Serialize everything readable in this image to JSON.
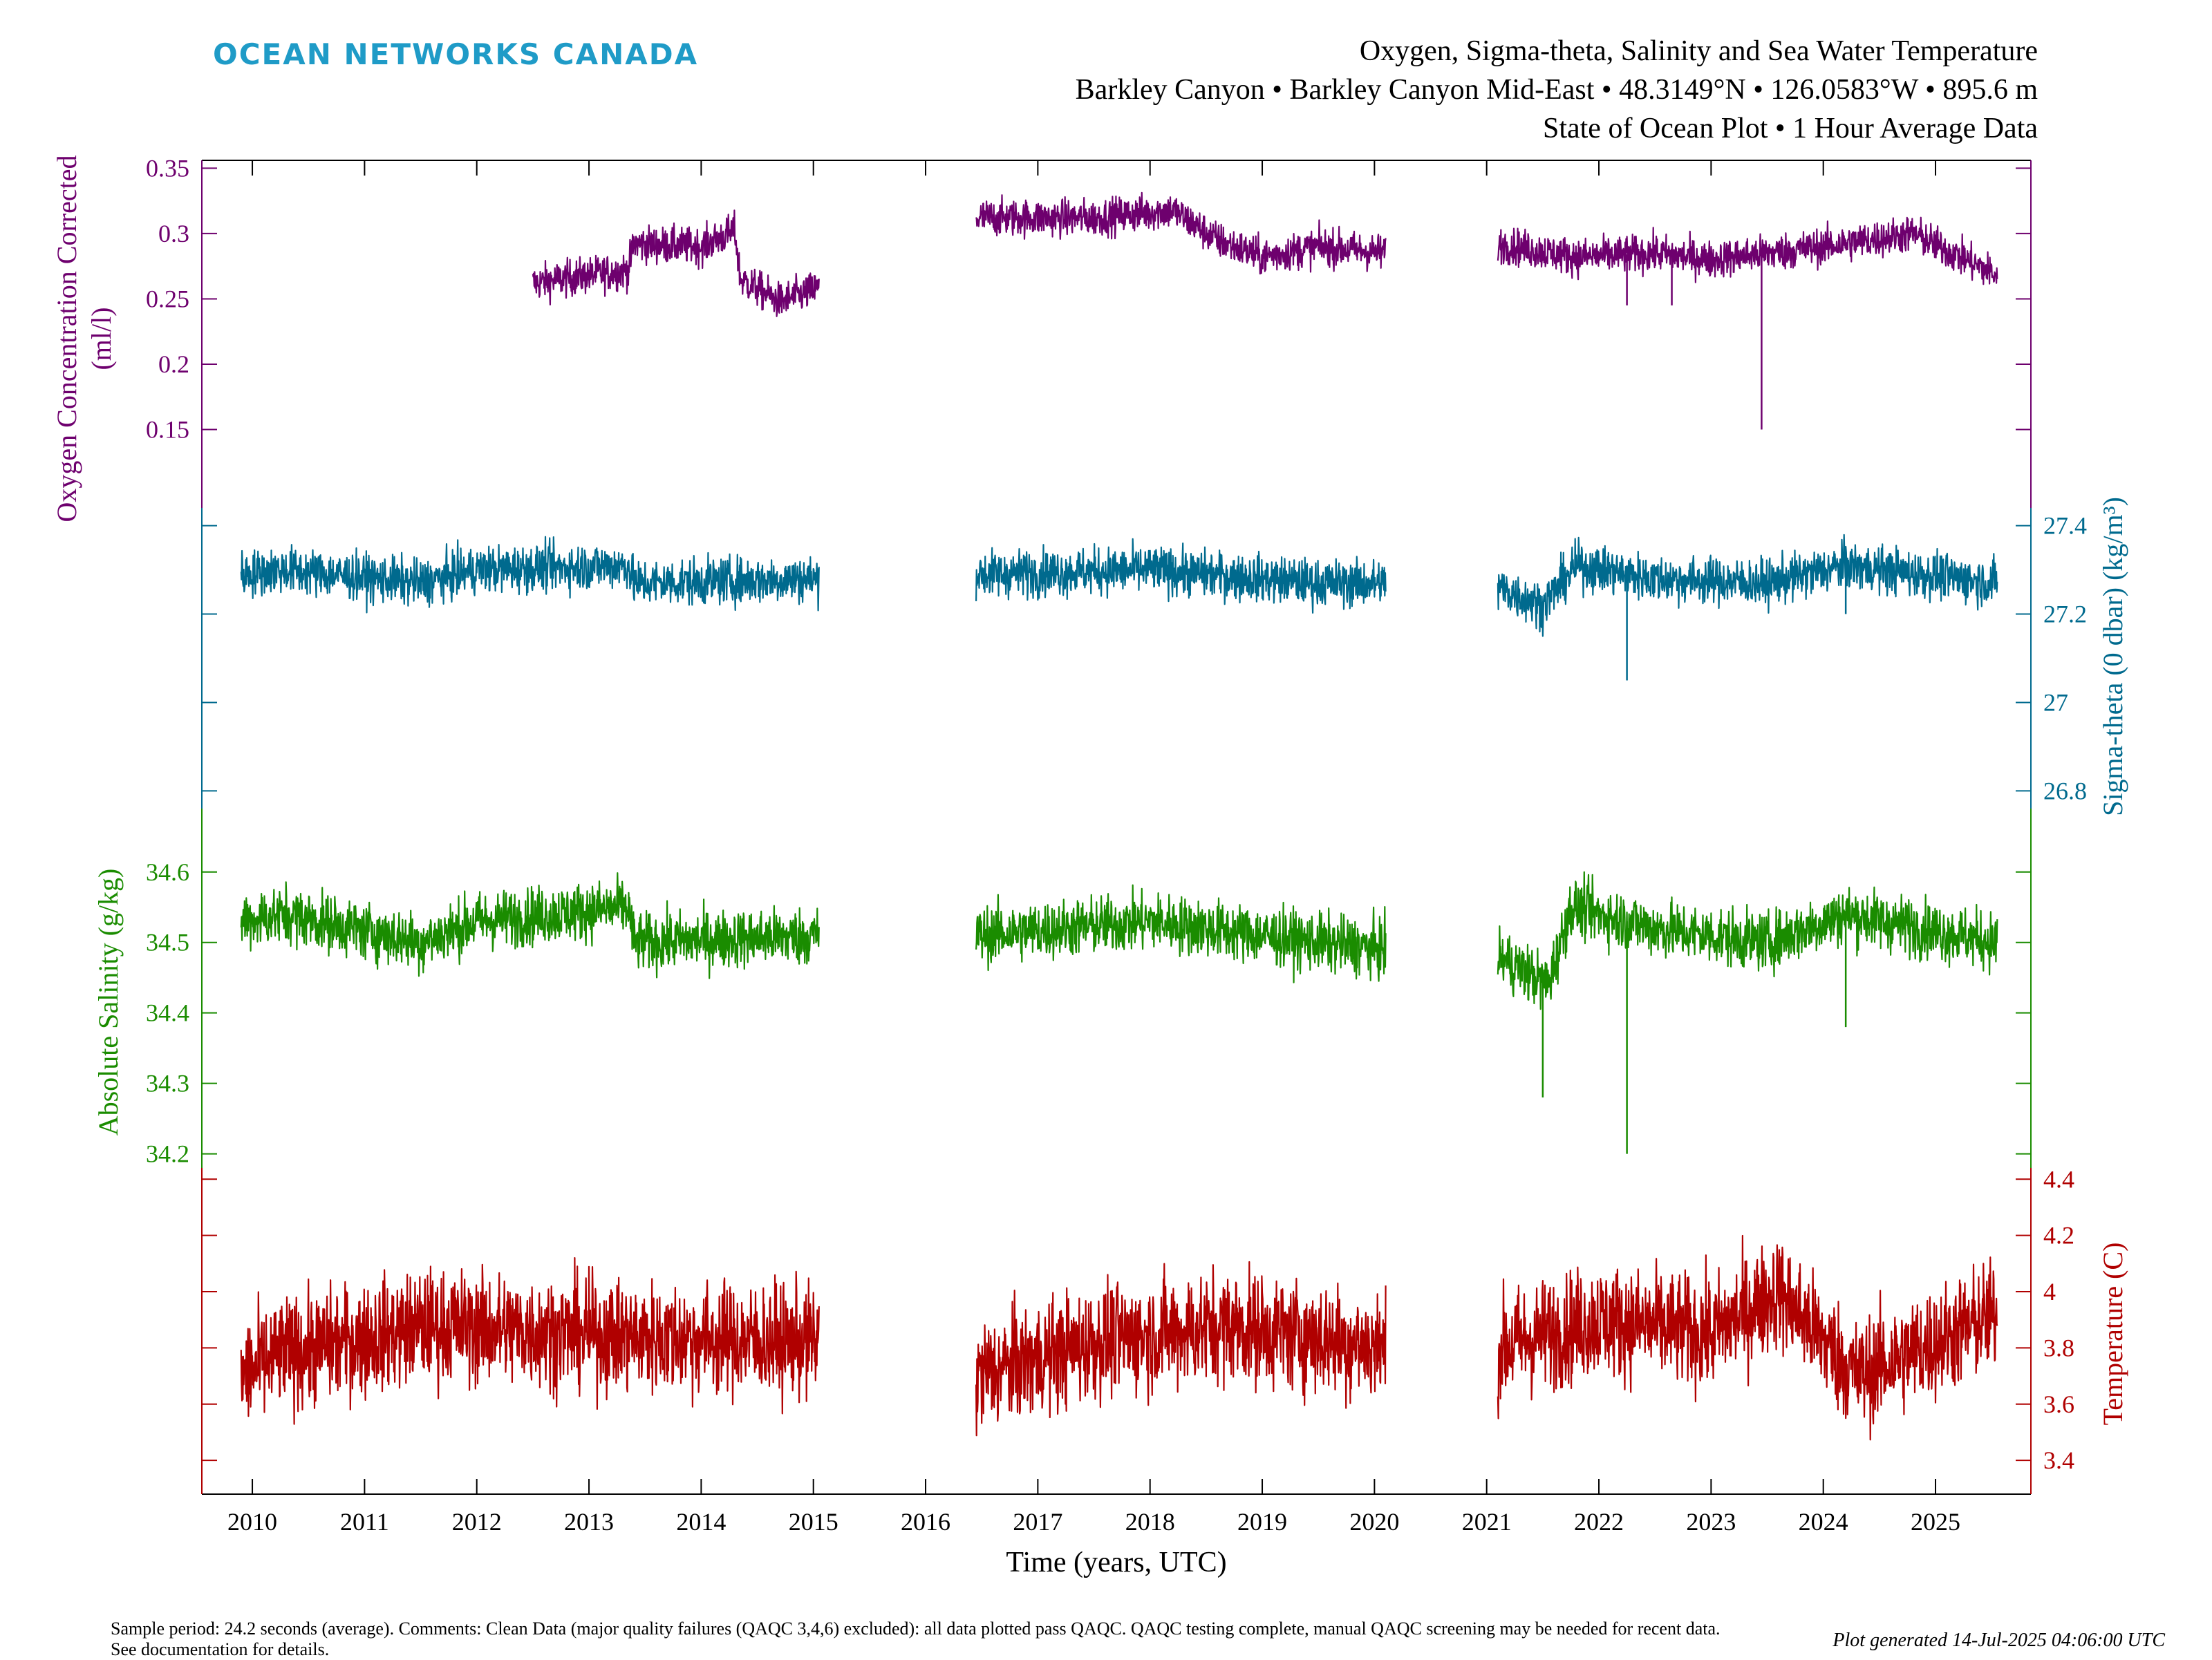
{
  "header": {
    "brand": "OCEAN NETWORKS CANADA",
    "title_line1": "Oxygen, Sigma-theta, Salinity and Sea Water Temperature",
    "title_line2": "Barkley Canyon • Barkley Canyon Mid-East • 48.3149°N • 126.0583°W • 895.6 m",
    "title_line3": "State of Ocean Plot • 1 Hour Average Data"
  },
  "footer": {
    "note": "Sample period: 24.2 seconds (average). Comments: Clean Data (major quality failures (QAQC 3,4,6) excluded): all data plotted pass QAQC. QAQC testing complete, manual QAQC screening may be needed for recent data. See documentation for details.",
    "generated": "Plot generated 14-Jul-2025 04:06:00 UTC"
  },
  "colors": {
    "oxygen": "#6e006e",
    "sigma": "#006a8e",
    "salinity": "#1a8c00",
    "temperature": "#b00000"
  },
  "chart_data": {
    "type": "line",
    "x_axis": {
      "label": "Time (years, UTC)",
      "range": [
        2009.55,
        2025.85
      ],
      "ticks": [
        2010,
        2011,
        2012,
        2013,
        2014,
        2015,
        2016,
        2017,
        2018,
        2019,
        2020,
        2021,
        2022,
        2023,
        2024,
        2025
      ]
    },
    "series": [
      {
        "name": "Oxygen",
        "axis_label": "Oxygen Concentration Corrected (ml/l)",
        "axis_side": "left",
        "ticks": [
          0.15,
          0.2,
          0.25,
          0.3,
          0.35
        ],
        "noise": 0.012,
        "segments": [
          {
            "start": 2012.5,
            "end": 2015.05,
            "profile": [
              [
                2012.5,
                0.262
              ],
              [
                2013.0,
                0.268
              ],
              [
                2013.35,
                0.272
              ],
              [
                2013.4,
                0.292
              ],
              [
                2014.0,
                0.29
              ],
              [
                2014.3,
                0.302
              ],
              [
                2014.35,
                0.265
              ],
              [
                2014.7,
                0.248
              ],
              [
                2015.05,
                0.258
              ]
            ]
          },
          {
            "start": 2016.45,
            "end": 2020.1,
            "profile": [
              [
                2016.45,
                0.312
              ],
              [
                2017.5,
                0.312
              ],
              [
                2018.2,
                0.318
              ],
              [
                2018.6,
                0.295
              ],
              [
                2019.0,
                0.282
              ],
              [
                2019.5,
                0.29
              ],
              [
                2020.1,
                0.285
              ]
            ]
          },
          {
            "start": 2021.1,
            "end": 2025.55,
            "profile": [
              [
                2021.1,
                0.292
              ],
              [
                2021.8,
                0.282
              ],
              [
                2022.5,
                0.285
              ],
              [
                2023.0,
                0.28
              ],
              [
                2023.5,
                0.285
              ],
              [
                2024.0,
                0.29
              ],
              [
                2024.8,
                0.3
              ],
              [
                2025.55,
                0.268
              ]
            ]
          }
        ],
        "spikes": [
          [
            2022.25,
            0.245
          ],
          [
            2022.65,
            0.245
          ],
          [
            2023.2,
            0.27
          ],
          [
            2023.45,
            0.15
          ]
        ]
      },
      {
        "name": "Sigma-theta",
        "axis_label": "Sigma-theta (0 dbar) (kg/m³)",
        "axis_side": "right",
        "ticks": [
          26.8,
          27.0,
          27.2,
          27.4
        ],
        "noise": 0.045,
        "segments": [
          {
            "start": 2009.9,
            "end": 2015.05,
            "profile": [
              [
                2009.9,
                27.29
              ],
              [
                2010.3,
                27.3
              ],
              [
                2011.5,
                27.27
              ],
              [
                2012.0,
                27.3
              ],
              [
                2013.35,
                27.31
              ],
              [
                2013.4,
                27.27
              ],
              [
                2015.05,
                27.28
              ]
            ]
          },
          {
            "start": 2016.45,
            "end": 2020.1,
            "profile": [
              [
                2016.45,
                27.29
              ],
              [
                2018.0,
                27.3
              ],
              [
                2019.5,
                27.27
              ],
              [
                2020.1,
                27.27
              ]
            ]
          },
          {
            "start": 2021.1,
            "end": 2025.55,
            "profile": [
              [
                2021.1,
                27.26
              ],
              [
                2021.5,
                27.22
              ],
              [
                2021.8,
                27.31
              ],
              [
                2022.5,
                27.28
              ],
              [
                2023.5,
                27.27
              ],
              [
                2024.2,
                27.31
              ],
              [
                2025.55,
                27.27
              ]
            ]
          }
        ],
        "spikes": [
          [
            2022.25,
            27.05
          ],
          [
            2024.2,
            27.2
          ]
        ]
      },
      {
        "name": "Absolute Salinity",
        "axis_label": "Absolute Salinity (g/kg)",
        "axis_side": "left",
        "ticks": [
          34.2,
          34.3,
          34.4,
          34.5,
          34.6
        ],
        "noise": 0.035,
        "segments": [
          {
            "start": 2009.9,
            "end": 2015.05,
            "profile": [
              [
                2009.9,
                34.53
              ],
              [
                2010.3,
                34.54
              ],
              [
                2011.5,
                34.5
              ],
              [
                2012.0,
                34.53
              ],
              [
                2013.35,
                34.55
              ],
              [
                2013.4,
                34.5
              ],
              [
                2015.05,
                34.51
              ]
            ]
          },
          {
            "start": 2016.45,
            "end": 2020.1,
            "profile": [
              [
                2016.45,
                34.51
              ],
              [
                2018.0,
                34.53
              ],
              [
                2019.5,
                34.5
              ],
              [
                2020.1,
                34.49
              ]
            ]
          },
          {
            "start": 2021.1,
            "end": 2025.55,
            "profile": [
              [
                2021.1,
                34.48
              ],
              [
                2021.55,
                34.44
              ],
              [
                2021.75,
                34.55
              ],
              [
                2022.5,
                34.52
              ],
              [
                2023.5,
                34.5
              ],
              [
                2024.2,
                34.54
              ],
              [
                2025.55,
                34.5
              ]
            ]
          }
        ],
        "spikes": [
          [
            2021.5,
            34.28
          ],
          [
            2022.25,
            34.2
          ],
          [
            2024.2,
            34.38
          ]
        ]
      },
      {
        "name": "Temperature",
        "axis_label": "Temperature (C)",
        "axis_side": "right",
        "ticks": [
          3.4,
          3.6,
          3.8,
          4.0,
          4.2,
          4.4
        ],
        "noise": 0.17,
        "segments": [
          {
            "start": 2009.9,
            "end": 2015.05,
            "profile": [
              [
                2009.9,
                3.7
              ],
              [
                2010.3,
                3.78
              ],
              [
                2011.6,
                3.88
              ],
              [
                2012.5,
                3.86
              ],
              [
                2013.35,
                3.84
              ],
              [
                2015.05,
                3.82
              ]
            ]
          },
          {
            "start": 2016.45,
            "end": 2020.1,
            "profile": [
              [
                2016.45,
                3.7
              ],
              [
                2017.5,
                3.82
              ],
              [
                2018.7,
                3.88
              ],
              [
                2020.1,
                3.8
              ]
            ]
          },
          {
            "start": 2021.1,
            "end": 2025.55,
            "profile": [
              [
                2021.1,
                3.8
              ],
              [
                2022.0,
                3.9
              ],
              [
                2023.0,
                3.85
              ],
              [
                2023.6,
                4.0
              ],
              [
                2024.3,
                3.7
              ],
              [
                2025.0,
                3.82
              ],
              [
                2025.55,
                3.92
              ]
            ]
          }
        ],
        "spikes": []
      }
    ]
  }
}
